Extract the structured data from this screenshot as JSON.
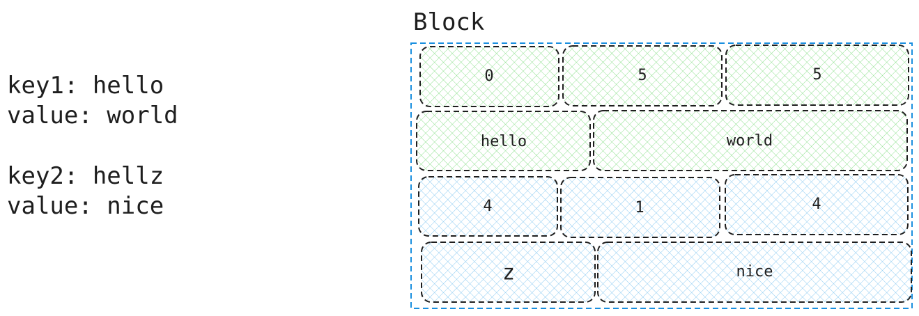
{
  "entries": [
    {
      "key_line": "key1: hello",
      "value_line": "value: world"
    },
    {
      "key_line": "key2: hellz",
      "value_line": "value: nice"
    }
  ],
  "block": {
    "title": "Block",
    "border_color": "#1a8fdf",
    "rows": [
      {
        "fill": "green",
        "cells": [
          "0",
          "5",
          "5"
        ]
      },
      {
        "fill": "green",
        "cells": [
          "hello",
          "world"
        ]
      },
      {
        "fill": "blue",
        "cells": [
          "4",
          "1",
          "4"
        ]
      },
      {
        "fill": "blue",
        "cells": [
          "z",
          "nice"
        ]
      }
    ]
  },
  "colors": {
    "green_hatch": "#8fe08f",
    "blue_hatch": "#8ccbf2",
    "cell_border": "#1e1e1e"
  }
}
